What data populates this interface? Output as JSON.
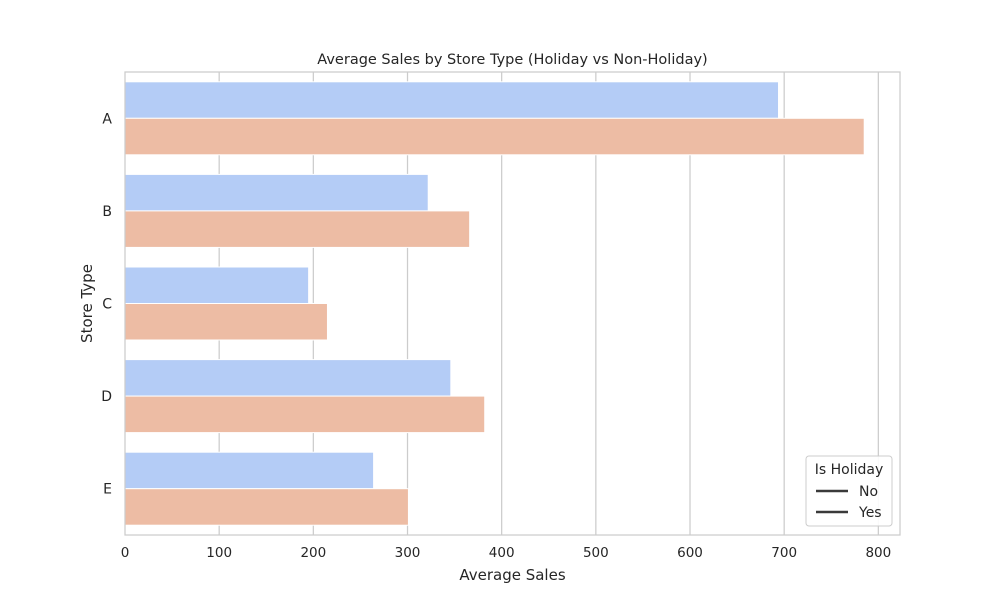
{
  "chart_data": {
    "type": "bar",
    "orientation": "horizontal",
    "title": "Average Sales by Store Type (Holiday vs Non-Holiday)",
    "xlabel": "Average Sales",
    "ylabel": "Store Type",
    "categories": [
      "A",
      "B",
      "C",
      "D",
      "E"
    ],
    "series": [
      {
        "name": "No",
        "color": "#b4ccf6",
        "values": [
          694,
          322,
          195,
          346,
          264
        ]
      },
      {
        "name": "Yes",
        "color": "#edbca4",
        "values": [
          785,
          366,
          215,
          382,
          301
        ]
      }
    ],
    "xlim": [
      0,
      823
    ],
    "xticks": [
      0,
      100,
      200,
      300,
      400,
      500,
      600,
      700,
      800
    ],
    "xtick_labels": [
      "0",
      "100",
      "200",
      "300",
      "400",
      "500",
      "600",
      "700",
      "800"
    ],
    "grid": true,
    "legend": {
      "title": "Is Holiday",
      "placement": "lower-right",
      "entries": [
        "No",
        "Yes"
      ]
    }
  }
}
